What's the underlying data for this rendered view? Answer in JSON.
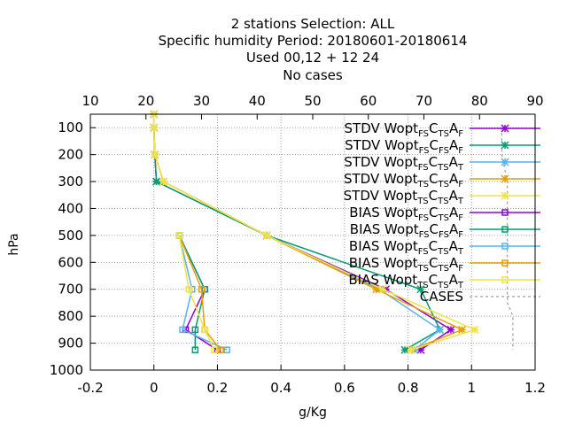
{
  "title_lines": [
    "2 stations Selection: ALL",
    "Specific humidity  Period: 20180601-20180614",
    "Used  00,12  + 12 24",
    "No cases"
  ],
  "chart_data": {
    "type": "line",
    "xlabel": "g/Kg",
    "ylabel": "hPa",
    "xlim": [
      -0.2,
      1.2
    ],
    "ylim": [
      1000,
      50
    ],
    "x2lim": [
      10,
      90
    ],
    "x_ticks": [
      "-0.2",
      "0",
      "0.2",
      "0.4",
      "0.6",
      "0.8",
      "1",
      "1.2"
    ],
    "x2_ticks": [
      "10",
      "20",
      "30",
      "40",
      "50",
      "60",
      "70",
      "80",
      "90"
    ],
    "y_ticks": [
      "100",
      "200",
      "300",
      "400",
      "500",
      "600",
      "700",
      "800",
      "900",
      "1000"
    ],
    "grid": true,
    "legend_position": "top-right",
    "levels": [
      50,
      100,
      200,
      300,
      500,
      700,
      850,
      925
    ],
    "series": [
      {
        "name": "STDV Wopt FS CTS AF",
        "color": "#9400d3",
        "marker": "x",
        "x": [
          0.0,
          0.0,
          0.003,
          0.008,
          0.355,
          0.73,
          0.935,
          0.84
        ],
        "levels": [
          50,
          100,
          200,
          300,
          500,
          700,
          850,
          925
        ]
      },
      {
        "name": "STDV Wopt FS CFS AF",
        "color": "#009e73",
        "marker": "x",
        "x": [
          0.0,
          0.0,
          0.003,
          0.008,
          0.355,
          0.84,
          0.9,
          0.79
        ],
        "levels": [
          50,
          100,
          200,
          300,
          500,
          700,
          850,
          925
        ]
      },
      {
        "name": "STDV Wopt FS CTS AT",
        "color": "#56b4e9",
        "marker": "x",
        "x": [
          0.0,
          0.0,
          0.003,
          0.03,
          0.355,
          0.71,
          0.9,
          0.82
        ],
        "levels": [
          50,
          100,
          200,
          300,
          500,
          700,
          850,
          925
        ]
      },
      {
        "name": "STDV Wopt TS CTS AF",
        "color": "#e69f00",
        "marker": "x",
        "x": [
          0.0,
          0.0,
          0.003,
          0.03,
          0.355,
          0.7,
          0.97,
          0.81
        ],
        "levels": [
          50,
          100,
          200,
          300,
          500,
          700,
          850,
          925
        ]
      },
      {
        "name": "STDV Wopt TS CTS AT",
        "color": "#f0e442",
        "marker": "x",
        "x": [
          0.0,
          0.0,
          0.003,
          0.03,
          0.355,
          0.72,
          1.01,
          0.81
        ],
        "levels": [
          50,
          100,
          200,
          300,
          500,
          700,
          850,
          925
        ]
      },
      {
        "name": "BIAS Wopt FS CTS AF",
        "color": "#9400d3",
        "marker": "square",
        "x": [
          0.08,
          0.16,
          0.1,
          0.2
        ],
        "levels": [
          500,
          700,
          850,
          925
        ]
      },
      {
        "name": "BIAS Wopt FS CFS AF",
        "color": "#009e73",
        "marker": "square",
        "x": [
          0.08,
          0.16,
          0.13,
          0.13
        ],
        "levels": [
          500,
          700,
          850,
          925
        ]
      },
      {
        "name": "BIAS Wopt FS CTS AT",
        "color": "#56b4e9",
        "marker": "square",
        "x": [
          0.08,
          0.12,
          0.09,
          0.23
        ],
        "levels": [
          500,
          700,
          850,
          925
        ]
      },
      {
        "name": "BIAS Wopt TS CTS AF",
        "color": "#e69f00",
        "marker": "square",
        "x": [
          0.08,
          0.15,
          0.16,
          0.21
        ],
        "levels": [
          500,
          700,
          850,
          925
        ]
      },
      {
        "name": "BIAS Wopt TS CTS AT",
        "color": "#f0e442",
        "marker": "square",
        "x": [
          0.08,
          0.11,
          0.16,
          0.19
        ],
        "levels": [
          500,
          700,
          850,
          925
        ]
      },
      {
        "name": "CASES",
        "color": "#a0a0a0",
        "marker": "none",
        "dashed": true,
        "x2": [
          84,
          84,
          85,
          85,
          85,
          85,
          85,
          85,
          86,
          86,
          86,
          86
        ],
        "levels": [
          100,
          200,
          300,
          400,
          500,
          600,
          700,
          750,
          800,
          850,
          900,
          925
        ]
      }
    ]
  },
  "legend": [
    {
      "p": "STDV Wopt",
      "s1": "FS",
      "m": "C",
      "s2": "TS",
      "e": "A",
      "s3": "F"
    },
    {
      "p": "STDV Wopt",
      "s1": "FS",
      "m": "C",
      "s2": "FS",
      "e": "A",
      "s3": "F"
    },
    {
      "p": "STDV Wopt",
      "s1": "FS",
      "m": "C",
      "s2": "TS",
      "e": "A",
      "s3": "T"
    },
    {
      "p": "STDV Wopt",
      "s1": "TS",
      "m": "C",
      "s2": "TS",
      "e": "A",
      "s3": "F"
    },
    {
      "p": "STDV Wopt",
      "s1": "TS",
      "m": "C",
      "s2": "TS",
      "e": "A",
      "s3": "T"
    },
    {
      "p": "BIAS Wopt",
      "s1": "FS",
      "m": "C",
      "s2": "TS",
      "e": "A",
      "s3": "F"
    },
    {
      "p": "BIAS Wopt",
      "s1": "FS",
      "m": "C",
      "s2": "FS",
      "e": "A",
      "s3": "F"
    },
    {
      "p": "BIAS Wopt",
      "s1": "FS",
      "m": "C",
      "s2": "TS",
      "e": "A",
      "s3": "T"
    },
    {
      "p": "BIAS Wopt",
      "s1": "TS",
      "m": "C",
      "s2": "TS",
      "e": "A",
      "s3": "F"
    },
    {
      "p": "BIAS Wopt",
      "s1": "TS",
      "m": "C",
      "s2": "TS",
      "e": "A",
      "s3": "T"
    },
    {
      "p": "CASES",
      "s1": "",
      "m": "",
      "s2": "",
      "e": "",
      "s3": ""
    }
  ]
}
